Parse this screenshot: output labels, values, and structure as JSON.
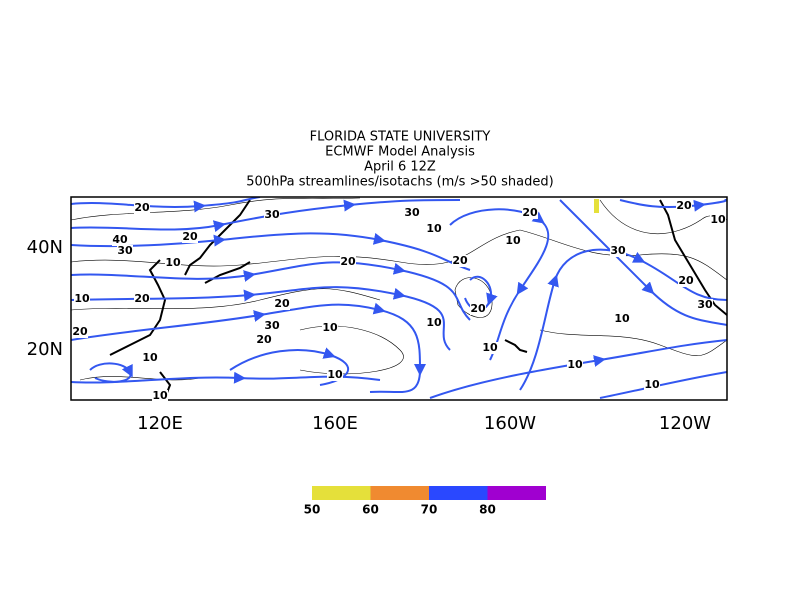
{
  "header": {
    "lines": [
      "FLORIDA STATE UNIVERSITY",
      "ECMWF Model Analysis",
      "April 6 12Z",
      "500hPa streamlines/isotachs (m/s >50 shaded)"
    ]
  },
  "map": {
    "lat_labels": [
      "40N",
      "20N"
    ],
    "lon_labels": [
      "120E",
      "160E",
      "160W",
      "120W"
    ],
    "contour_labels": [
      "20",
      "30",
      "40",
      "30",
      "20",
      "10",
      "10",
      "20",
      "20",
      "20",
      "30",
      "20",
      "10",
      "20",
      "30",
      "10",
      "20",
      "10",
      "20",
      "20",
      "10",
      "10",
      "10",
      "10",
      "10",
      "30",
      "20",
      "10",
      "20",
      "30",
      "10",
      "10",
      "10"
    ]
  },
  "colorbar": {
    "values": [
      50,
      60,
      70,
      80
    ],
    "colors": [
      "#e5e03a",
      "#f08a30",
      "#2a48ff",
      "#a000d0"
    ]
  }
}
